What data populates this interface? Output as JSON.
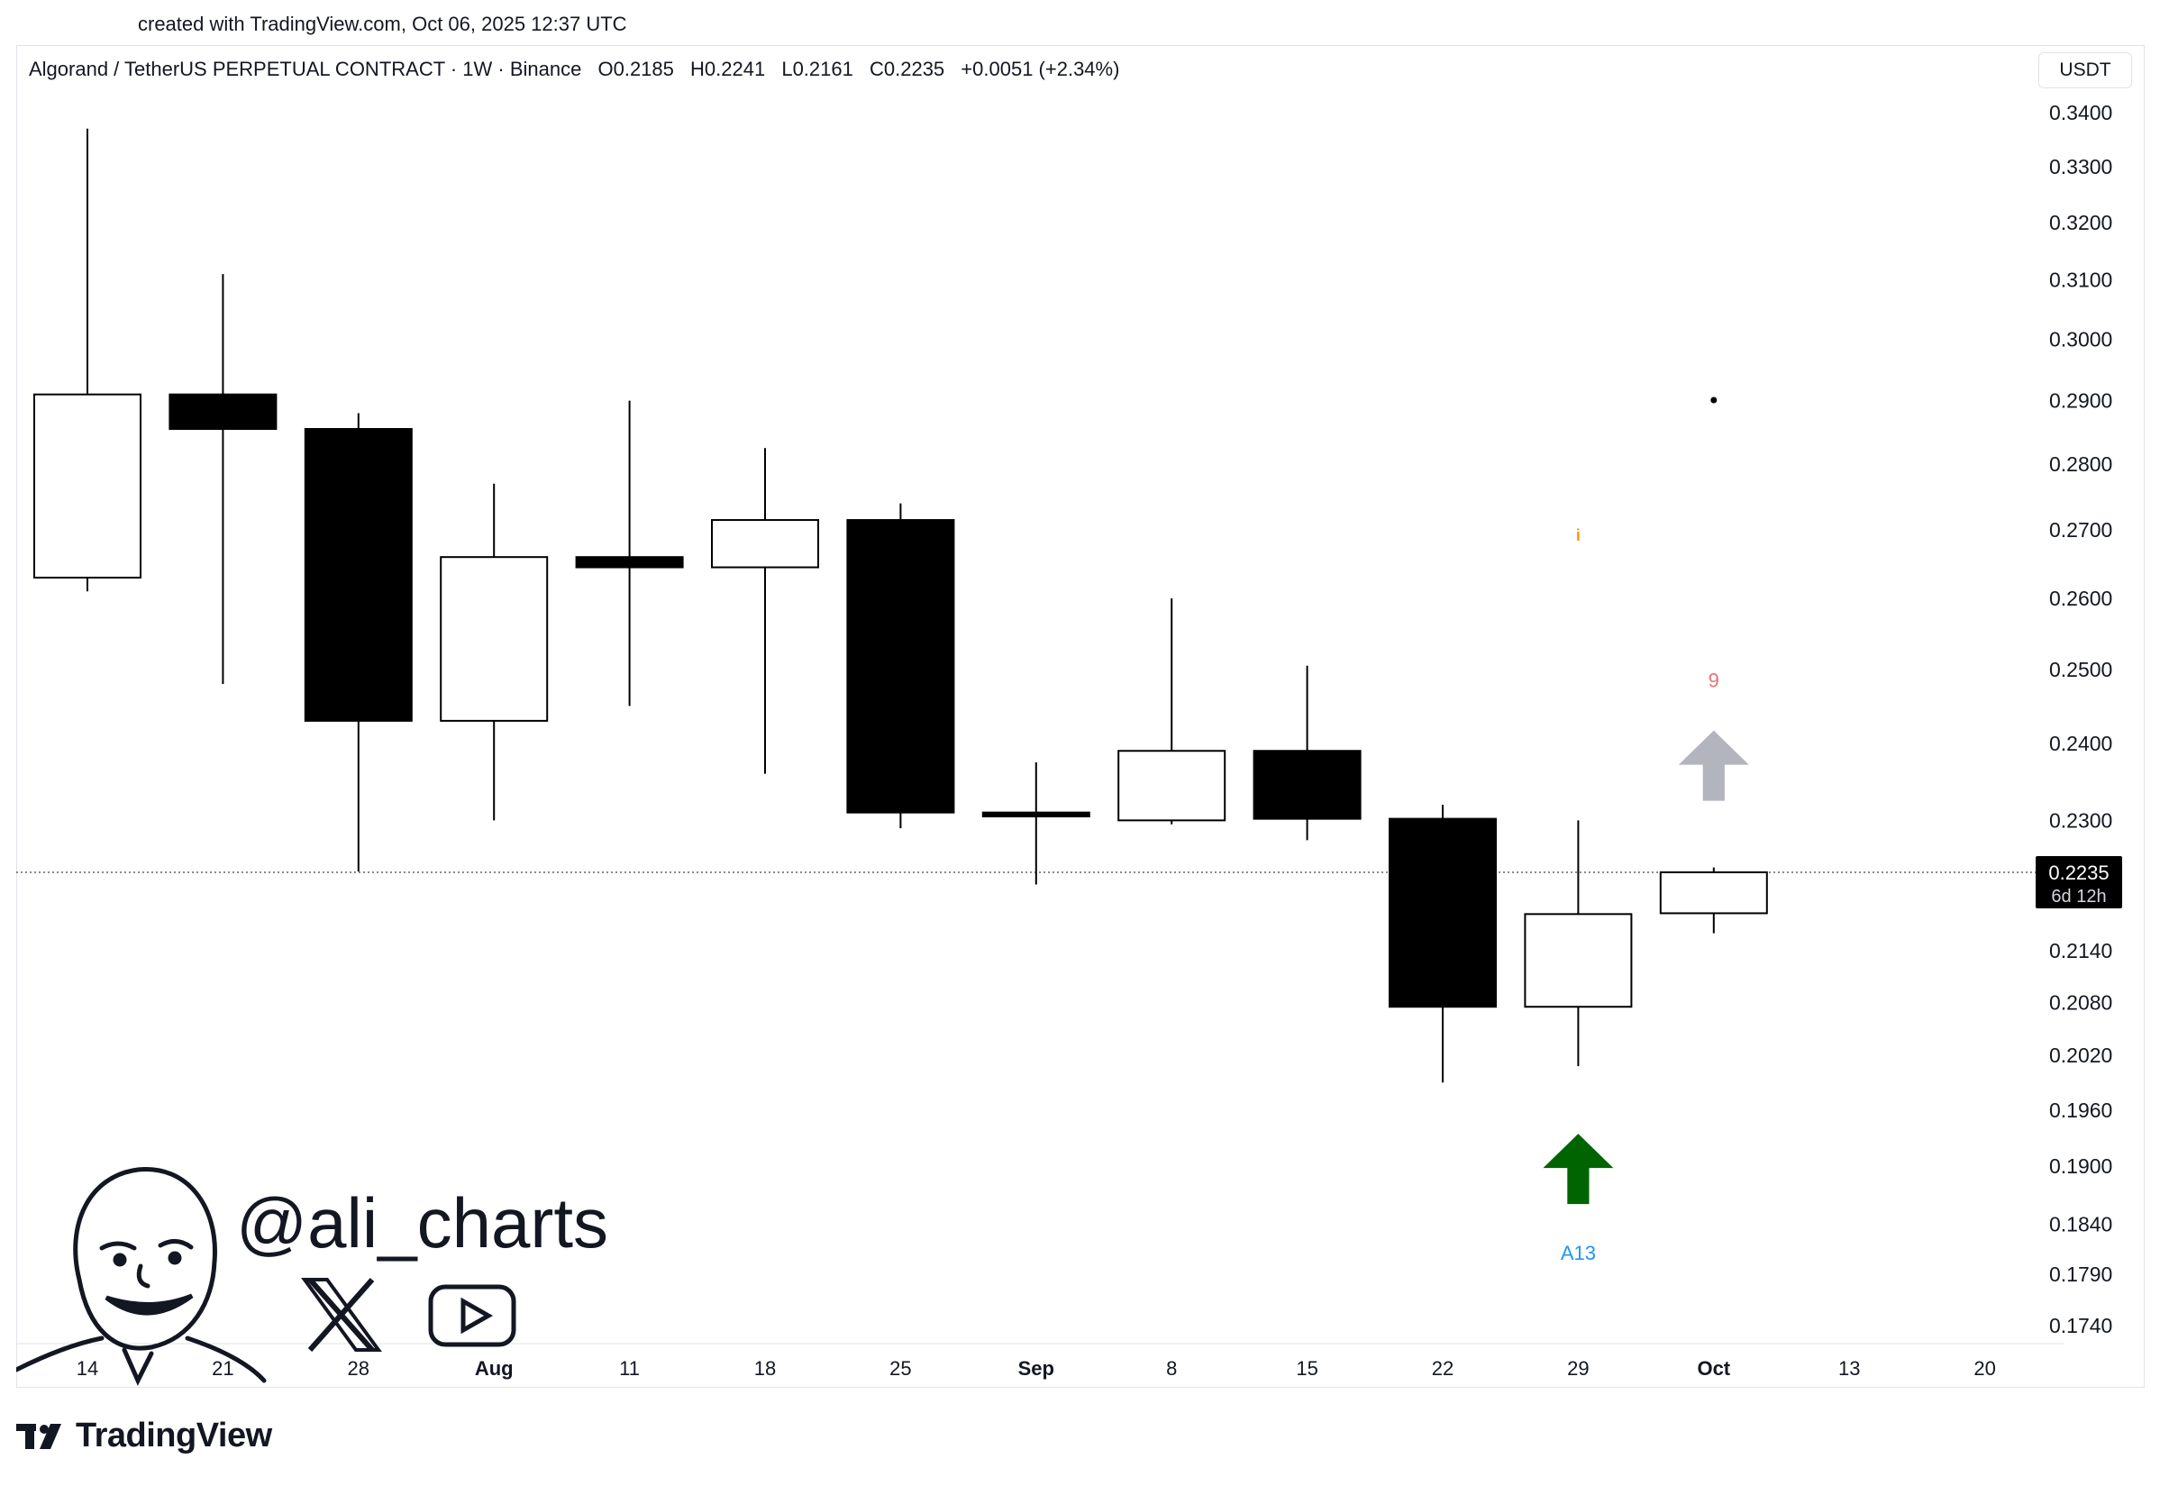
{
  "header": {
    "created_text": "created with TradingView.com, Oct 06, 2025 12:37 UTC"
  },
  "legend": {
    "symbol": "Algorand / TetherUS PERPETUAL CONTRACT · 1W · Binance",
    "open": "O0.2185",
    "high": "H0.2241",
    "low": "L0.2161",
    "close": "C0.2235",
    "change": "+0.0051 (+2.34%)"
  },
  "unit_button": {
    "label": "USDT"
  },
  "price_tag": {
    "price": "0.2235",
    "countdown": "6d 12h"
  },
  "watermark": {
    "handle": "@ali_charts",
    "icons": [
      "x-logo-icon",
      "youtube-icon"
    ]
  },
  "footer": {
    "brand": "TradingView"
  },
  "colors": {
    "bull_fill": "#ffffff",
    "bear_fill": "#000000",
    "buy_arrow": "#006400",
    "pending_arrow": "#b2b5be",
    "label_blue": "#2196f3",
    "label_red": "#e57373",
    "label_orange": "#ff9800"
  },
  "chart_data": {
    "type": "candlestick",
    "interval": "1W",
    "scale": "log",
    "price_axis_ticks": [
      0.34,
      0.33,
      0.32,
      0.31,
      0.3,
      0.29,
      0.28,
      0.27,
      0.26,
      0.25,
      0.24,
      0.23,
      0.214,
      0.208,
      0.202,
      0.196,
      0.19,
      0.184,
      0.179,
      0.174
    ],
    "price_axis_labels": [
      "0.3400",
      "0.3300",
      "0.3200",
      "0.3100",
      "0.3000",
      "0.2900",
      "0.2800",
      "0.2700",
      "0.2600",
      "0.2500",
      "0.2400",
      "0.2300",
      "0.2140",
      "0.2080",
      "0.2020",
      "0.1960",
      "0.1900",
      "0.1840",
      "0.1790",
      "0.1740"
    ],
    "time_axis_labels": [
      "14",
      "21",
      "28",
      "Aug",
      "11",
      "18",
      "25",
      "Sep",
      "8",
      "15",
      "22",
      "29",
      "Oct",
      "13",
      "20"
    ],
    "current_price": 0.2235,
    "candles": [
      {
        "o": 0.263,
        "h": 0.337,
        "l": 0.261,
        "c": 0.291
      },
      {
        "o": 0.291,
        "h": 0.311,
        "l": 0.248,
        "c": 0.2855
      },
      {
        "o": 0.2855,
        "h": 0.288,
        "l": 0.2236,
        "c": 0.243
      },
      {
        "o": 0.243,
        "h": 0.277,
        "l": 0.23,
        "c": 0.266
      },
      {
        "o": 0.266,
        "h": 0.29,
        "l": 0.245,
        "c": 0.2645
      },
      {
        "o": 0.2645,
        "h": 0.2825,
        "l": 0.236,
        "c": 0.2715
      },
      {
        "o": 0.2715,
        "h": 0.274,
        "l": 0.229,
        "c": 0.231
      },
      {
        "o": 0.231,
        "h": 0.2375,
        "l": 0.222,
        "c": 0.2305
      },
      {
        "o": 0.23,
        "h": 0.26,
        "l": 0.2295,
        "c": 0.239
      },
      {
        "o": 0.239,
        "h": 0.2505,
        "l": 0.2275,
        "c": 0.2302
      },
      {
        "o": 0.2302,
        "h": 0.232,
        "l": 0.199,
        "c": 0.2075
      },
      {
        "o": 0.2075,
        "h": 0.23,
        "l": 0.2008,
        "c": 0.2184
      },
      {
        "o": 0.2185,
        "h": 0.2241,
        "l": 0.2161,
        "c": 0.2235
      }
    ],
    "annotations": [
      {
        "type": "arrow-up",
        "color": "buy",
        "candle": 11,
        "label": "A13"
      },
      {
        "type": "arrow-up",
        "color": "pending",
        "candle": 12,
        "label": "9"
      },
      {
        "type": "info-marker",
        "candle": 11,
        "label": "i"
      },
      {
        "type": "dot",
        "candle": 12
      }
    ]
  }
}
